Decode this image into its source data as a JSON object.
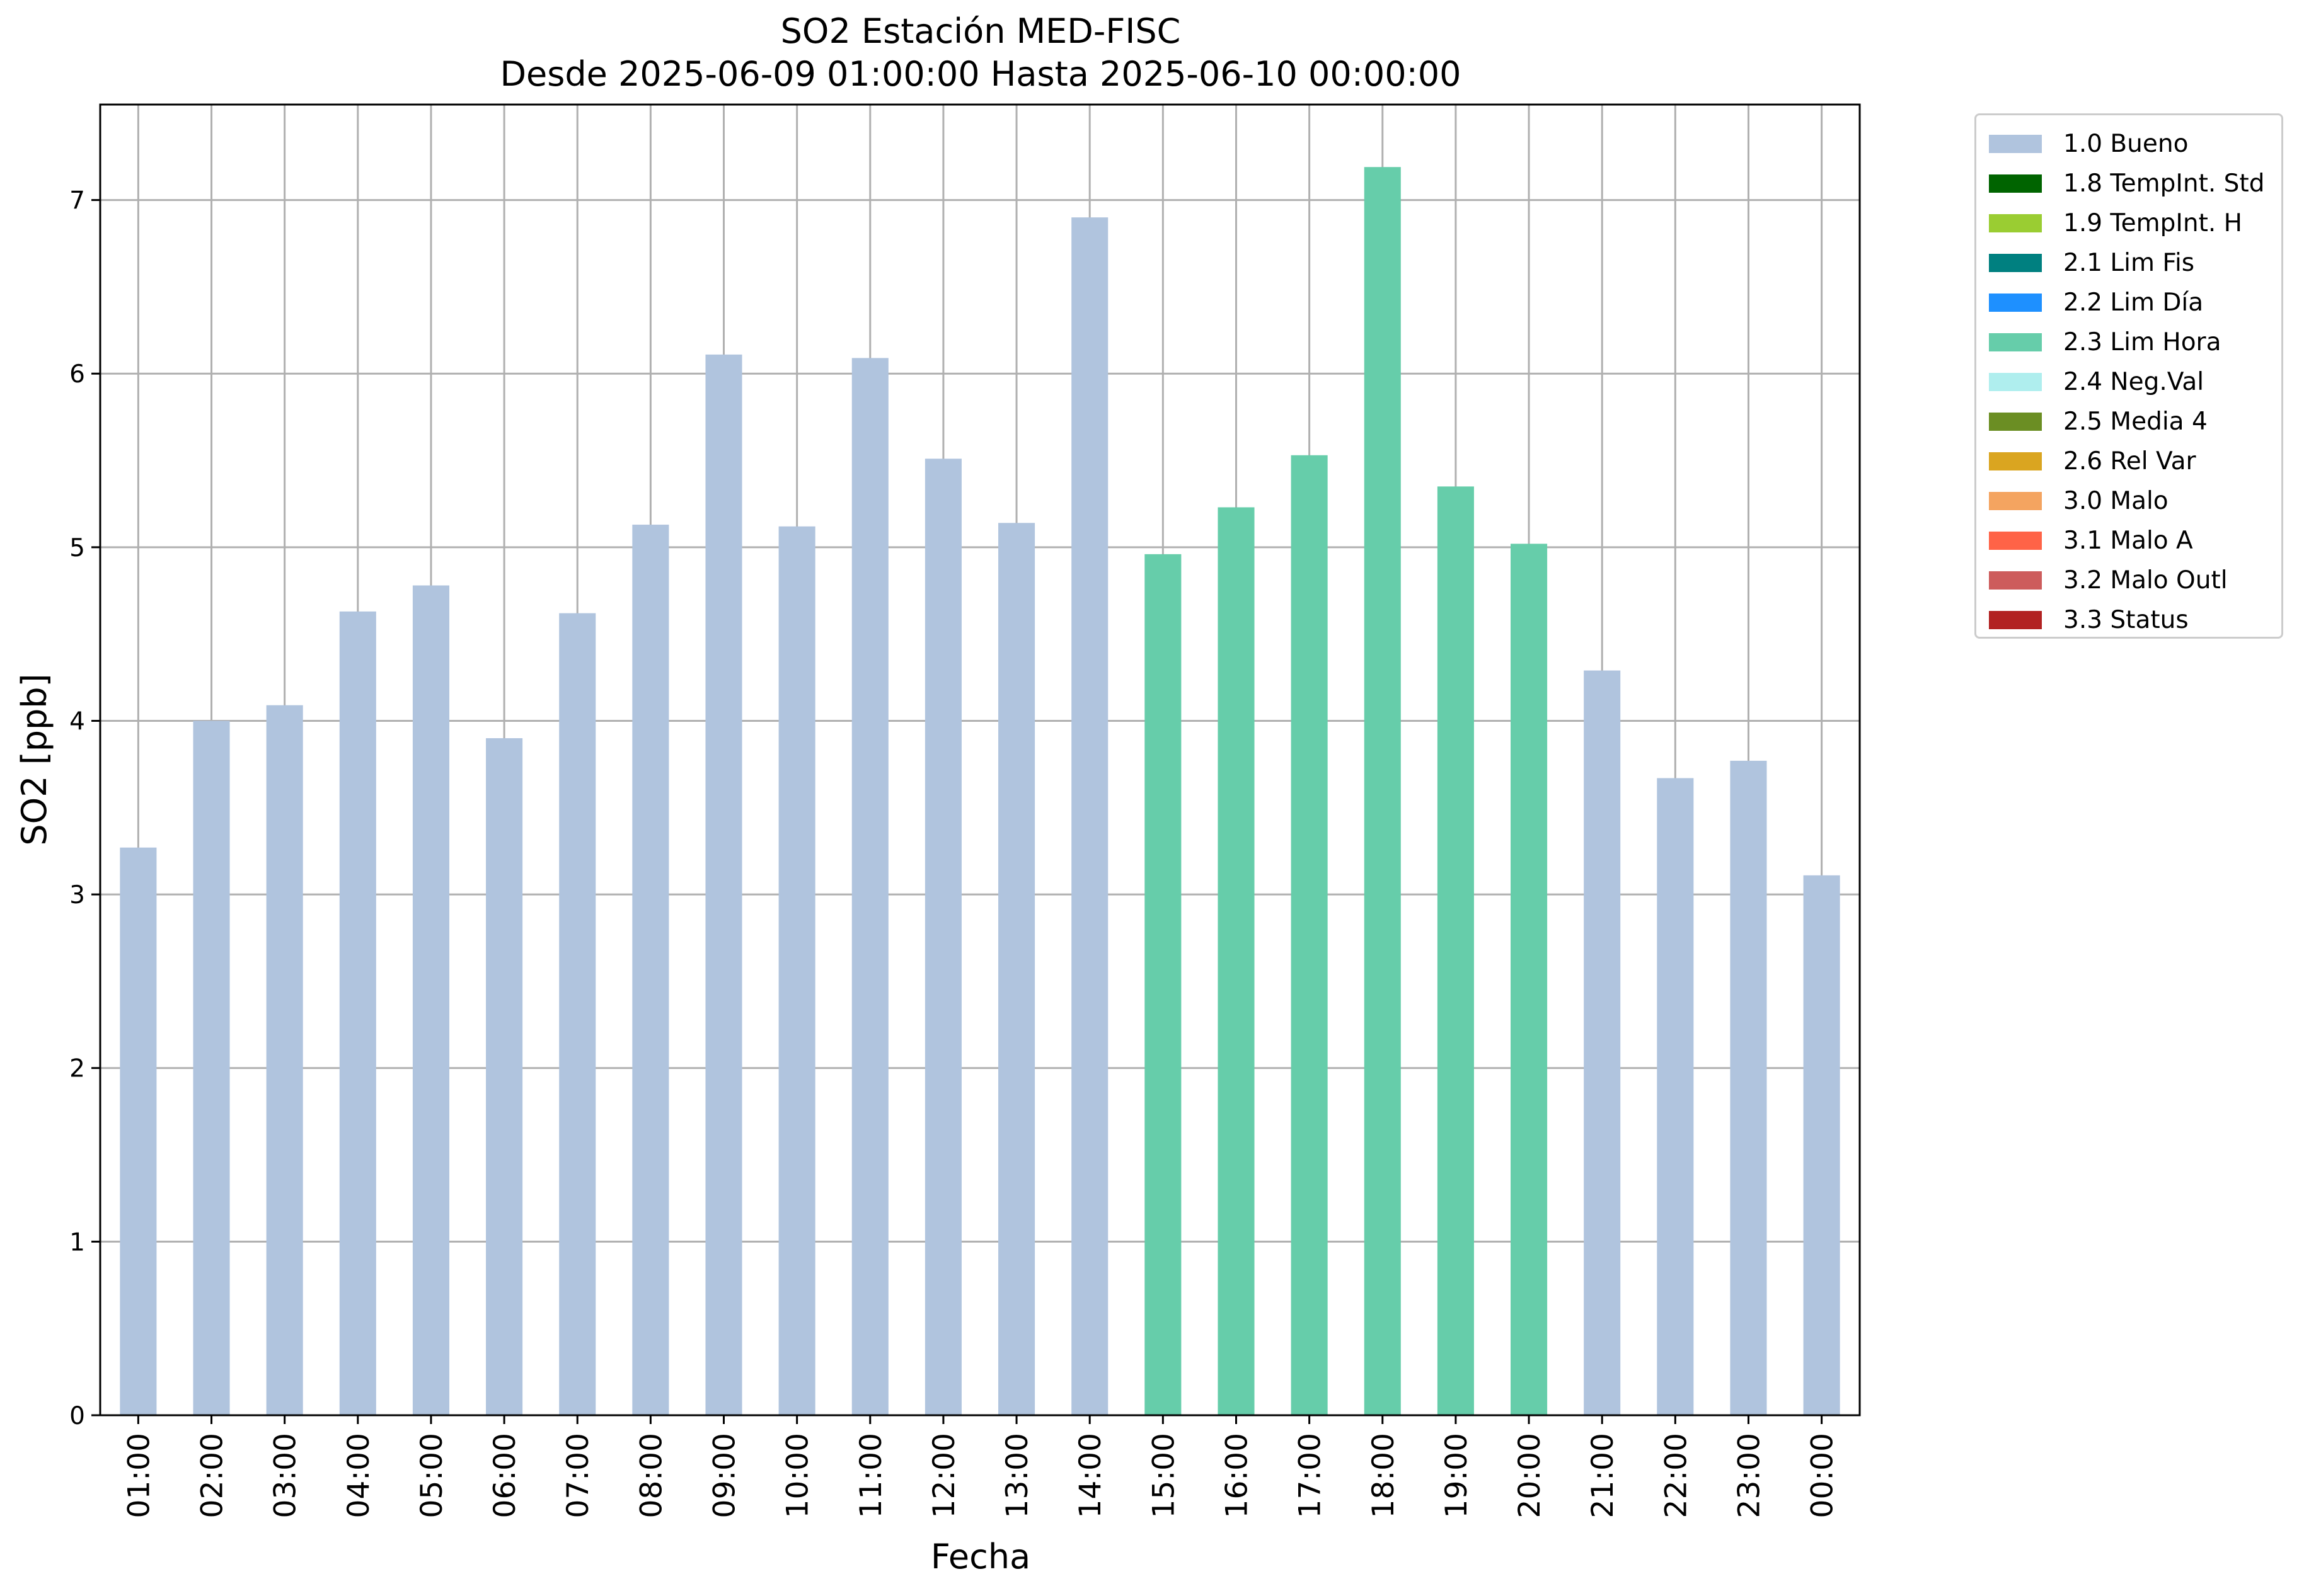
{
  "chart_data": {
    "type": "bar",
    "title": "SO2 Estación MED-FISC",
    "subtitle": "Desde 2025-06-09 01:00:00 Hasta 2025-06-10 00:00:00",
    "xlabel": "Fecha",
    "ylabel": "SO2 [ppb]",
    "ylim": [
      0,
      7.55
    ],
    "yticks": [
      0,
      1,
      2,
      3,
      4,
      5,
      6,
      7
    ],
    "grid": true,
    "legend_position": "outside-top-right",
    "categories": [
      "01:00",
      "02:00",
      "03:00",
      "04:00",
      "05:00",
      "06:00",
      "07:00",
      "08:00",
      "09:00",
      "10:00",
      "11:00",
      "12:00",
      "13:00",
      "14:00",
      "15:00",
      "16:00",
      "17:00",
      "18:00",
      "19:00",
      "20:00",
      "21:00",
      "22:00",
      "23:00",
      "00:00"
    ],
    "values": [
      3.27,
      4.0,
      4.09,
      4.63,
      4.78,
      3.9,
      4.62,
      5.13,
      6.11,
      5.12,
      6.09,
      5.51,
      5.14,
      6.9,
      4.96,
      5.23,
      5.53,
      7.19,
      5.35,
      5.02,
      4.29,
      3.67,
      3.77,
      3.11
    ],
    "flags": [
      "1.0 Bueno",
      "1.0 Bueno",
      "1.0 Bueno",
      "1.0 Bueno",
      "1.0 Bueno",
      "1.0 Bueno",
      "1.0 Bueno",
      "1.0 Bueno",
      "1.0 Bueno",
      "1.0 Bueno",
      "1.0 Bueno",
      "1.0 Bueno",
      "1.0 Bueno",
      "1.0 Bueno",
      "2.3 Lim Hora",
      "2.3 Lim Hora",
      "2.3 Lim Hora",
      "2.3 Lim Hora",
      "2.3 Lim Hora",
      "2.3 Lim Hora",
      "1.0 Bueno",
      "1.0 Bueno",
      "1.0 Bueno",
      "1.0 Bueno"
    ],
    "legend": [
      {
        "label": "1.0 Bueno",
        "color": "#b0c4de"
      },
      {
        "label": "1.8 TempInt. Std",
        "color": "#006400"
      },
      {
        "label": "1.9 TempInt. H",
        "color": "#9acd32"
      },
      {
        "label": "2.1 Lim Fis",
        "color": "#008080"
      },
      {
        "label": "2.2 Lim Día",
        "color": "#1e90ff"
      },
      {
        "label": "2.3 Lim Hora",
        "color": "#66cdaa"
      },
      {
        "label": "2.4 Neg.Val",
        "color": "#afeeee"
      },
      {
        "label": "2.5 Media 4",
        "color": "#6b8e23"
      },
      {
        "label": "2.6 Rel Var",
        "color": "#daa520"
      },
      {
        "label": "3.0 Malo",
        "color": "#f4a460"
      },
      {
        "label": "3.1 Malo A",
        "color": "#ff6347"
      },
      {
        "label": "3.2 Malo Outl",
        "color": "#cd5c5c"
      },
      {
        "label": "3.3 Status",
        "color": "#b22222"
      }
    ]
  }
}
